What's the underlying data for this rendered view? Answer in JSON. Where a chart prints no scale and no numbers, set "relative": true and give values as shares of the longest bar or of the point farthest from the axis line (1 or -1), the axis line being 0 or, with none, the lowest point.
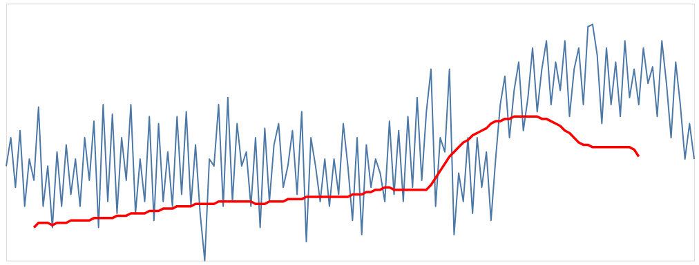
{
  "chart_data": {
    "type": "line",
    "relative": true,
    "categories": [
      null,
      null,
      null,
      null,
      null,
      null,
      null,
      null,
      null,
      null,
      null,
      null,
      null,
      null,
      null,
      null,
      null,
      null,
      null,
      null,
      null,
      null,
      null,
      null,
      null,
      null,
      null,
      null,
      null,
      null,
      null,
      null,
      null,
      null,
      null,
      null,
      null,
      null,
      null,
      null,
      null,
      null,
      null,
      null,
      null,
      null,
      null,
      null,
      null,
      null,
      null,
      null,
      null,
      null,
      null,
      null,
      null,
      null,
      null,
      null,
      null,
      null,
      null,
      null,
      null,
      null,
      null,
      null,
      null,
      null,
      null,
      null,
      null,
      null,
      null,
      null,
      null,
      null,
      null,
      null,
      null,
      null,
      null,
      null,
      null,
      null,
      null,
      null,
      null,
      null,
      null,
      null,
      null,
      null,
      null,
      null,
      null,
      null,
      null,
      null,
      null,
      null,
      null,
      null,
      null,
      null,
      null,
      null,
      null,
      null,
      null,
      null,
      null,
      null,
      null,
      null,
      null,
      null,
      null,
      null,
      null,
      null,
      null,
      null,
      null,
      null,
      null,
      null,
      null,
      null,
      null,
      null,
      null,
      null,
      null,
      null,
      null,
      null,
      null,
      null,
      null,
      null,
      null,
      null,
      null,
      null,
      null,
      null,
      null,
      null
    ],
    "series": [
      {
        "color": "#4c78a8",
        "values": [
          0.4,
          0.52,
          0.31,
          0.55,
          0.23,
          0.43,
          0.34,
          0.65,
          0.23,
          0.4,
          0.14,
          0.46,
          0.23,
          0.49,
          0.28,
          0.43,
          0.23,
          0.52,
          0.34,
          0.59,
          0.14,
          0.66,
          0.25,
          0.62,
          0.2,
          0.52,
          0.34,
          0.66,
          0.2,
          0.43,
          0.25,
          0.61,
          0.17,
          0.58,
          0.25,
          0.46,
          0.23,
          0.61,
          0.28,
          0.63,
          0.23,
          0.49,
          0.2,
          0,
          0.43,
          0.4,
          0.66,
          0.23,
          0.69,
          0.25,
          0.58,
          0.4,
          0.46,
          0.23,
          0.52,
          0.14,
          0.56,
          0.25,
          0.49,
          0.58,
          0.31,
          0.4,
          0.55,
          0.28,
          0.63,
          0.08,
          0.52,
          0.4,
          0.25,
          0.43,
          0.23,
          0.43,
          0.28,
          0.58,
          0.4,
          0.17,
          0.52,
          0.11,
          0.49,
          0.31,
          0.43,
          0.37,
          0.25,
          0.59,
          0.28,
          0.55,
          0.25,
          0.61,
          0.31,
          0.69,
          0.34,
          0.63,
          0.81,
          0.23,
          0.52,
          0.46,
          0.81,
          0.11,
          0.37,
          0.25,
          0.52,
          0.2,
          0.52,
          0.31,
          0.46,
          0.17,
          0.43,
          0.66,
          0.78,
          0.52,
          0.72,
          0.84,
          0.55,
          0.69,
          0.9,
          0.63,
          0.81,
          0.93,
          0.66,
          0.84,
          0.72,
          0.93,
          0.61,
          0.81,
          0.9,
          0.66,
          0.99,
          1,
          0.87,
          0.58,
          0.9,
          0.66,
          0.84,
          0.61,
          0.93,
          0.69,
          0.81,
          0.66,
          0.9,
          0.75,
          0.82,
          0.61,
          0.93,
          0.75,
          0.52,
          0.84,
          0.66,
          0.43,
          0.58,
          0.43
        ]
      },
      {
        "color": "#ff0000",
        "values": [
          null,
          null,
          null,
          null,
          null,
          null,
          0.14,
          0.16,
          0.16,
          0.16,
          0.15,
          0.16,
          0.16,
          0.16,
          0.17,
          0.17,
          0.17,
          0.17,
          0.17,
          0.18,
          0.18,
          0.18,
          0.18,
          0.18,
          0.19,
          0.19,
          0.19,
          0.2,
          0.2,
          0.2,
          0.2,
          0.21,
          0.21,
          0.21,
          0.22,
          0.22,
          0.22,
          0.23,
          0.23,
          0.23,
          0.23,
          0.24,
          0.24,
          0.24,
          0.24,
          0.24,
          0.25,
          0.25,
          0.25,
          0.25,
          0.25,
          0.25,
          0.25,
          0.25,
          0.24,
          0.24,
          0.24,
          0.25,
          0.25,
          0.25,
          0.25,
          0.26,
          0.26,
          0.26,
          0.26,
          0.27,
          0.27,
          0.27,
          0.27,
          0.27,
          0.27,
          0.27,
          0.27,
          0.27,
          0.27,
          0.28,
          0.28,
          0.28,
          0.29,
          0.29,
          0.3,
          0.3,
          0.31,
          0.31,
          0.3,
          0.3,
          0.3,
          0.3,
          0.3,
          0.3,
          0.3,
          0.3,
          0.32,
          0.35,
          0.38,
          0.41,
          0.44,
          0.46,
          0.48,
          0.5,
          0.51,
          0.53,
          0.54,
          0.55,
          0.56,
          0.58,
          0.59,
          0.59,
          0.6,
          0.6,
          0.61,
          0.61,
          0.61,
          0.61,
          0.61,
          0.61,
          0.6,
          0.6,
          0.59,
          0.58,
          0.57,
          0.55,
          0.54,
          0.52,
          0.5,
          0.49,
          0.49,
          0.48,
          0.48,
          0.48,
          0.48,
          0.48,
          0.48,
          0.48,
          0.48,
          0.48,
          0.47,
          0.44,
          null,
          null,
          null,
          null,
          null,
          null,
          null,
          null,
          null,
          null,
          null,
          null
        ]
      }
    ]
  }
}
